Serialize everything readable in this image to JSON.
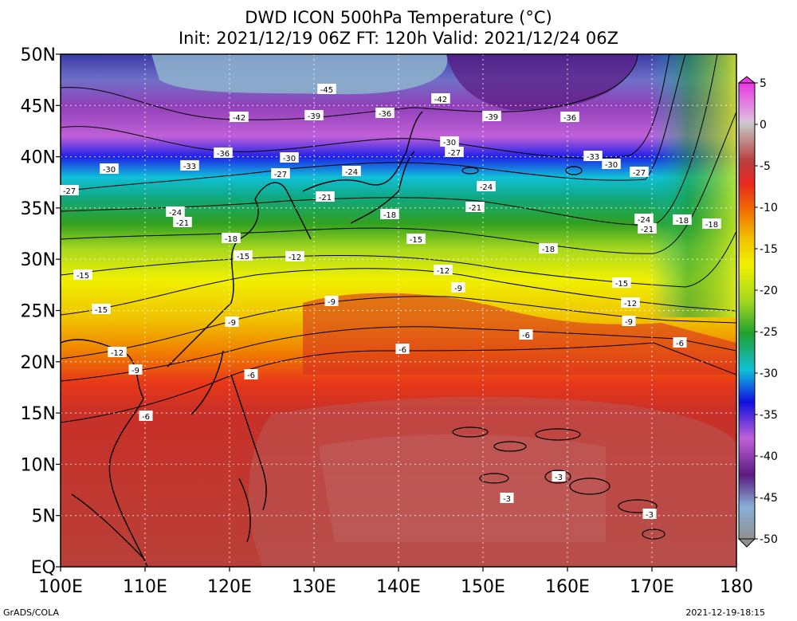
{
  "title": {
    "line1": "DWD ICON 500hPa Temperature (°C)",
    "line2": "Init: 2021/12/19 06Z  FT: 120h  Valid: 2021/12/24 06Z"
  },
  "axes": {
    "lat_labels": [
      "50N",
      "45N",
      "40N",
      "35N",
      "30N",
      "25N",
      "20N",
      "15N",
      "10N",
      "5N",
      "EQ"
    ],
    "lon_labels": [
      "100E",
      "110E",
      "120E",
      "130E",
      "140E",
      "150E",
      "160E",
      "170E",
      "180"
    ]
  },
  "colorbar": {
    "labels": [
      "5",
      "0",
      "-5",
      "-10",
      "-15",
      "-20",
      "-25",
      "-30",
      "-35",
      "-40",
      "-45",
      "-50"
    ],
    "colors": [
      "#e838e0",
      "#c8c8c8",
      "#b03c3c",
      "#e82820",
      "#f0a000",
      "#f0f000",
      "#32a018",
      "#0ab0b4",
      "#1010e0",
      "#b050d0",
      "#5a1a80",
      "#88b0d8",
      "#909090"
    ]
  },
  "contour_labels": [
    {
      "text": "-45"
    },
    {
      "text": "-42"
    },
    {
      "text": "-42"
    },
    {
      "text": "-39"
    },
    {
      "text": "-39"
    },
    {
      "text": "-36"
    },
    {
      "text": "-36"
    },
    {
      "text": "-36"
    },
    {
      "text": "-33"
    },
    {
      "text": "-33"
    },
    {
      "text": "-30"
    },
    {
      "text": "-30"
    },
    {
      "text": "-30"
    },
    {
      "text": "-30"
    },
    {
      "text": "-27"
    },
    {
      "text": "-27"
    },
    {
      "text": "-27"
    },
    {
      "text": "-27"
    },
    {
      "text": "-24"
    },
    {
      "text": "-24"
    },
    {
      "text": "-24"
    },
    {
      "text": "-24"
    },
    {
      "text": "-21"
    },
    {
      "text": "-21"
    },
    {
      "text": "-21"
    },
    {
      "text": "-21"
    },
    {
      "text": "-18"
    },
    {
      "text": "-18"
    },
    {
      "text": "-18"
    },
    {
      "text": "-18"
    },
    {
      "text": "-18"
    },
    {
      "text": "-15"
    },
    {
      "text": "-15"
    },
    {
      "text": "-15"
    },
    {
      "text": "-15"
    },
    {
      "text": "-15"
    },
    {
      "text": "-12"
    },
    {
      "text": "-12"
    },
    {
      "text": "-12"
    },
    {
      "text": "-12"
    },
    {
      "text": "-9"
    },
    {
      "text": "-9"
    },
    {
      "text": "-9"
    },
    {
      "text": "-9"
    },
    {
      "text": "-9"
    },
    {
      "text": "-6"
    },
    {
      "text": "-6"
    },
    {
      "text": "-6"
    },
    {
      "text": "-6"
    },
    {
      "text": "-6"
    },
    {
      "text": "-3"
    },
    {
      "text": "-3"
    },
    {
      "text": "-3"
    }
  ],
  "footer": {
    "left": "GrADS/COLA",
    "right": "2021-12-19-18:15"
  }
}
